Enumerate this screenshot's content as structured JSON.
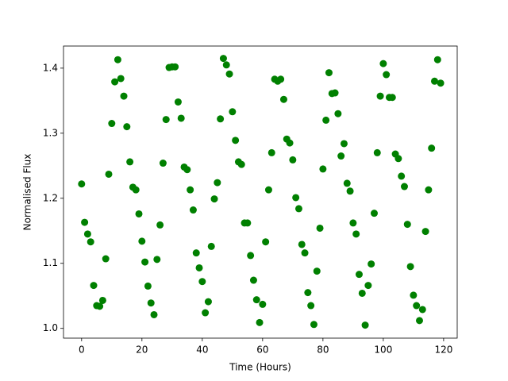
{
  "chart_data": {
    "type": "scatter",
    "xlabel": "Time (Hours)",
    "ylabel": "Normalised Flux",
    "color": "#008000",
    "grid": false,
    "xlim": [
      -6,
      124.5
    ],
    "ylim": [
      0.985,
      1.434
    ],
    "xticks": [
      0,
      20,
      40,
      60,
      80,
      100,
      120
    ],
    "yticks": [
      {
        "value": 1,
        "label": "1.0"
      },
      1.1,
      1.2,
      1.3,
      1.4
    ],
    "x": [
      0,
      1,
      2,
      3,
      4,
      5,
      6,
      7,
      8,
      9,
      10,
      11,
      12,
      13,
      14,
      15,
      16,
      17,
      18,
      19,
      20,
      21,
      22,
      23,
      24,
      25,
      26,
      27,
      28,
      29,
      30,
      31,
      32,
      33,
      34,
      35,
      36,
      37,
      38,
      39,
      40,
      41,
      42,
      43,
      44,
      45,
      46,
      47,
      48,
      49,
      50,
      51,
      52,
      53,
      54,
      55,
      56,
      57,
      58,
      59,
      60,
      61,
      62,
      63,
      64,
      65,
      66,
      67,
      68,
      69,
      70,
      71,
      72,
      73,
      74,
      75,
      76,
      77,
      78,
      79,
      80,
      81,
      82,
      83,
      84,
      85,
      86,
      87,
      88,
      89,
      90,
      91,
      92,
      93,
      94,
      95,
      96,
      97,
      98,
      99,
      100,
      101,
      102,
      103,
      104,
      105,
      106,
      107,
      108,
      109,
      110,
      111,
      112,
      113,
      114,
      115,
      116,
      117,
      118,
      119
    ],
    "values": [
      1.222,
      1.163,
      1.145,
      1.133,
      1.066,
      1.035,
      1.034,
      1.043,
      1.107,
      1.237,
      1.315,
      1.379,
      1.413,
      1.384,
      1.357,
      1.31,
      1.256,
      1.217,
      1.213,
      1.176,
      1.134,
      1.102,
      1.065,
      1.039,
      1.021,
      1.106,
      1.159,
      1.254,
      1.321,
      1.401,
      1.402,
      1.402,
      1.348,
      1.323,
      1.248,
      1.244,
      1.213,
      1.182,
      1.116,
      1.093,
      1.072,
      1.024,
      1.041,
      1.126,
      1.199,
      1.224,
      1.322,
      1.415,
      1.405,
      1.391,
      1.333,
      1.289,
      1.256,
      1.252,
      1.162,
      1.162,
      1.112,
      1.074,
      1.044,
      1.009,
      1.037,
      1.133,
      1.213,
      1.27,
      1.383,
      1.38,
      1.383,
      1.352,
      1.291,
      1.285,
      1.259,
      1.201,
      1.184,
      1.129,
      1.116,
      1.055,
      1.035,
      1.006,
      1.088,
      1.154,
      1.245,
      1.32,
      1.393,
      1.361,
      1.362,
      1.33,
      1.265,
      1.284,
      1.223,
      1.211,
      1.162,
      1.145,
      1.083,
      1.054,
      1.005,
      1.066,
      1.099,
      1.177,
      1.27,
      1.357,
      1.407,
      1.39,
      1.355,
      1.355,
      1.268,
      1.261,
      1.234,
      1.218,
      1.16,
      1.095,
      1.051,
      1.035,
      1.012,
      1.029,
      1.149,
      1.213,
      1.277,
      1.38,
      1.413,
      1.377
    ]
  }
}
